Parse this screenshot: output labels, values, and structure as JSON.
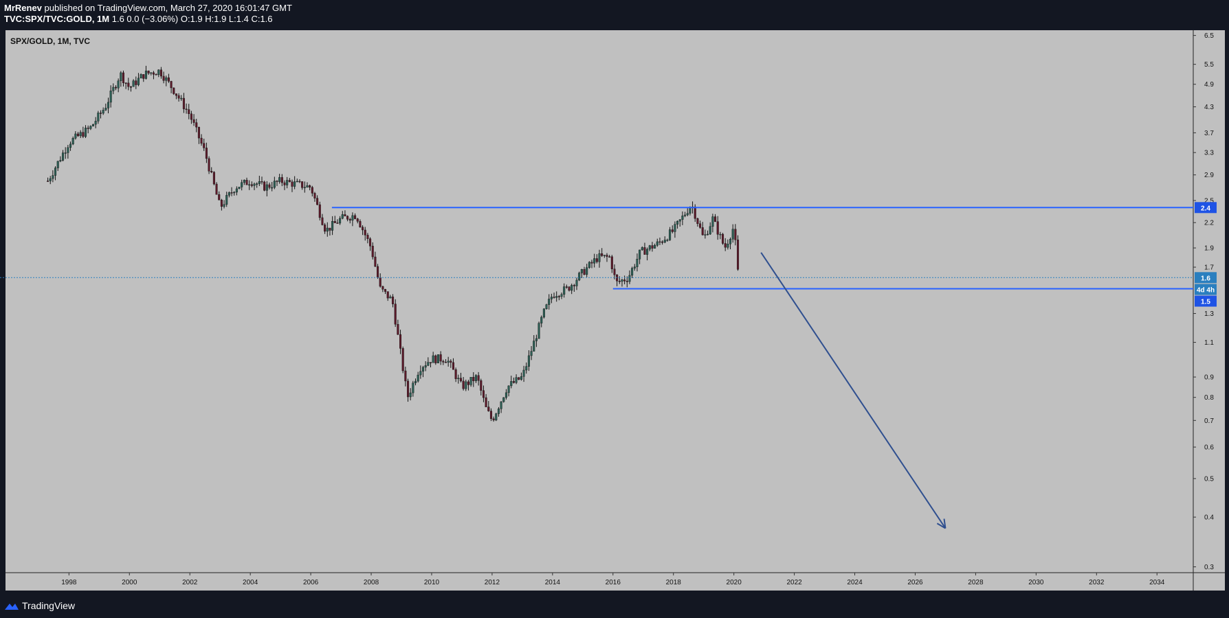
{
  "header": {
    "author": "MrRenev",
    "published_text": "published on TradingView.com, March 27, 2020 16:01:47 GMT",
    "symbol": "TVC:SPX/TVC:GOLD, 1M",
    "quote": "1.6 0.0 (−3.06%) O:1.9 H:1.9 L:1.4 C:1.6"
  },
  "footer": {
    "brand": "TradingView"
  },
  "colors": {
    "background": "#131722",
    "pane": "#c0c0c0",
    "accent_blue": "#1e53e5",
    "line_blue": "#2962ff",
    "arrow_blue": "#2f4f8f",
    "candle_up": "#2d5f55",
    "candle_down": "#5c1a2a",
    "wick": "#111111"
  },
  "chart_data": {
    "type": "candlestick",
    "title": "SPX/GOLD, 1M, TVC",
    "yscale": "log",
    "ylim": [
      0.29,
      6.7
    ],
    "xlim": [
      1995.9,
      2035.2
    ],
    "y_ticks": [
      6.5,
      5.5,
      4.9,
      4.3,
      3.7,
      3.3,
      2.9,
      2.5,
      2.2,
      1.9,
      1.7,
      1.3,
      1.1,
      0.9,
      0.8,
      0.7,
      0.6,
      0.5,
      0.4,
      0.3
    ],
    "x_ticks": [
      "1998",
      "2000",
      "2002",
      "2004",
      "2006",
      "2008",
      "2010",
      "2012",
      "2014",
      "2016",
      "2018",
      "2020",
      "2022",
      "2024",
      "2026",
      "2028",
      "2030",
      "2032",
      "2034"
    ],
    "price_path": [
      {
        "x": 1997.3,
        "y": 2.8
      },
      {
        "x": 1998.0,
        "y": 3.5
      },
      {
        "x": 1998.7,
        "y": 3.8
      },
      {
        "x": 1999.2,
        "y": 4.3
      },
      {
        "x": 1999.7,
        "y": 5.2
      },
      {
        "x": 2000.0,
        "y": 4.8
      },
      {
        "x": 2000.5,
        "y": 5.2
      },
      {
        "x": 2001.0,
        "y": 5.3
      },
      {
        "x": 2001.5,
        "y": 4.7
      },
      {
        "x": 2002.0,
        "y": 4.1
      },
      {
        "x": 2002.5,
        "y": 3.3
      },
      {
        "x": 2003.0,
        "y": 2.4
      },
      {
        "x": 2003.5,
        "y": 2.7
      },
      {
        "x": 2004.0,
        "y": 2.8
      },
      {
        "x": 2004.5,
        "y": 2.7
      },
      {
        "x": 2005.0,
        "y": 2.8
      },
      {
        "x": 2005.5,
        "y": 2.75
      },
      {
        "x": 2006.0,
        "y": 2.7
      },
      {
        "x": 2006.5,
        "y": 2.1
      },
      {
        "x": 2007.0,
        "y": 2.25
      },
      {
        "x": 2007.5,
        "y": 2.3
      },
      {
        "x": 2008.0,
        "y": 1.9
      },
      {
        "x": 2008.3,
        "y": 1.5
      },
      {
        "x": 2008.7,
        "y": 1.4
      },
      {
        "x": 2009.0,
        "y": 1.0
      },
      {
        "x": 2009.2,
        "y": 0.8
      },
      {
        "x": 2009.6,
        "y": 0.95
      },
      {
        "x": 2010.0,
        "y": 1.0
      },
      {
        "x": 2010.5,
        "y": 1.0
      },
      {
        "x": 2011.0,
        "y": 0.85
      },
      {
        "x": 2011.5,
        "y": 0.9
      },
      {
        "x": 2011.8,
        "y": 0.75
      },
      {
        "x": 2012.0,
        "y": 0.7
      },
      {
        "x": 2012.5,
        "y": 0.85
      },
      {
        "x": 2013.0,
        "y": 0.9
      },
      {
        "x": 2013.3,
        "y": 1.05
      },
      {
        "x": 2013.7,
        "y": 1.3
      },
      {
        "x": 2014.0,
        "y": 1.45
      },
      {
        "x": 2014.5,
        "y": 1.5
      },
      {
        "x": 2015.0,
        "y": 1.65
      },
      {
        "x": 2015.5,
        "y": 1.8
      },
      {
        "x": 2015.9,
        "y": 1.8
      },
      {
        "x": 2016.1,
        "y": 1.55
      },
      {
        "x": 2016.5,
        "y": 1.6
      },
      {
        "x": 2016.9,
        "y": 1.85
      },
      {
        "x": 2017.5,
        "y": 1.95
      },
      {
        "x": 2018.0,
        "y": 2.1
      },
      {
        "x": 2018.6,
        "y": 2.45
      },
      {
        "x": 2019.0,
        "y": 2.0
      },
      {
        "x": 2019.3,
        "y": 2.25
      },
      {
        "x": 2019.7,
        "y": 1.9
      },
      {
        "x": 2020.0,
        "y": 2.15
      },
      {
        "x": 2020.15,
        "y": 1.6
      }
    ],
    "annotations": {
      "resistance": {
        "y": 2.4,
        "x_start": 2006.7,
        "label": "2.4"
      },
      "support": {
        "y": 1.5,
        "x_start": 2016.0,
        "label": "1.5"
      },
      "last_price": {
        "y": 1.6,
        "label": "1.6"
      },
      "countdown": {
        "label": "4d 4h"
      },
      "arrow": {
        "from": {
          "x": 2020.9,
          "y": 1.85
        },
        "to": {
          "x": 2027.0,
          "y": 0.375
        }
      }
    }
  }
}
